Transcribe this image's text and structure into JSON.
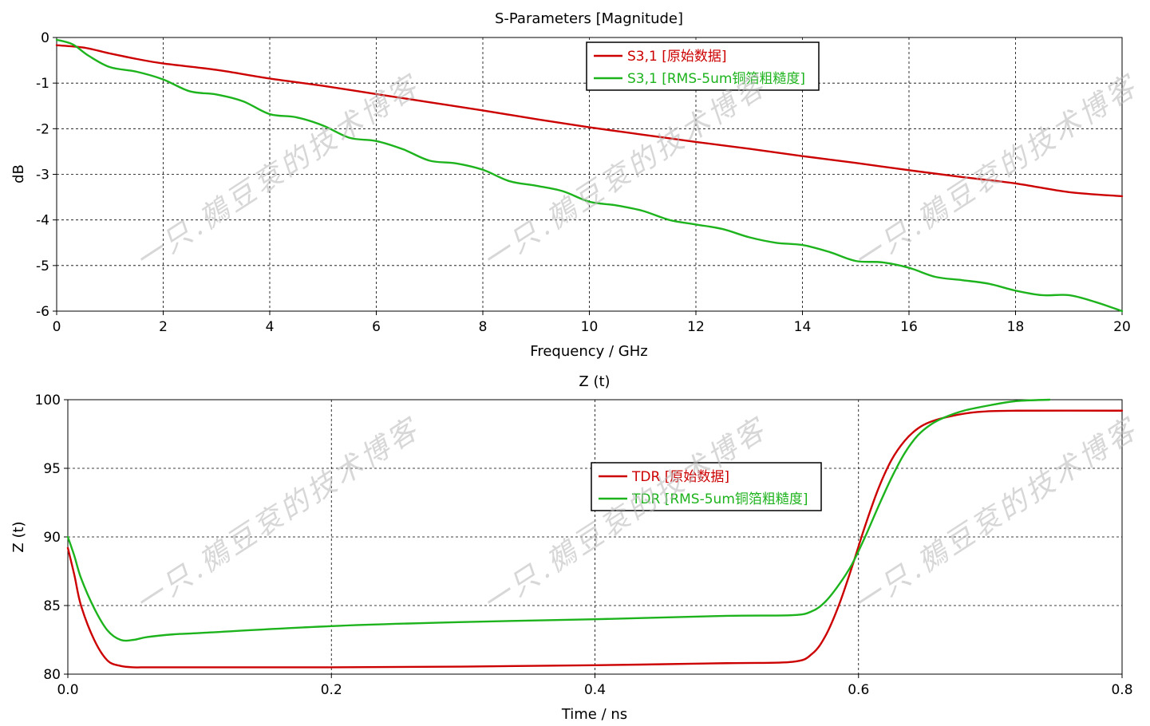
{
  "colors": {
    "red": "#cc0000",
    "green": "#1db31d",
    "axis": "#000000",
    "watermark": "#b8b8b8"
  },
  "watermark_text": "一只.鵺豆袞的技术博客",
  "chart_data": [
    {
      "type": "line",
      "title": "S-Parameters [Magnitude]",
      "xlabel": "Frequency / GHz",
      "ylabel": "dB",
      "xlim": [
        0,
        20
      ],
      "ylim": [
        -6,
        0
      ],
      "grid": true,
      "legend_position": "top-center",
      "x_ticks": [
        0,
        2,
        4,
        6,
        8,
        10,
        12,
        14,
        16,
        18,
        20
      ],
      "y_ticks": [
        0,
        -1,
        -2,
        -3,
        -4,
        -5,
        -6
      ],
      "series": [
        {
          "name": "S3,1 [原始数据]",
          "color": "#cc0000",
          "x": [
            0,
            0.5,
            1,
            1.5,
            2,
            3,
            4,
            5,
            6,
            7,
            8,
            9,
            10,
            11,
            12,
            13,
            14,
            15,
            16,
            17,
            18,
            19,
            20
          ],
          "y": [
            -0.17,
            -0.22,
            -0.35,
            -0.47,
            -0.57,
            -0.71,
            -0.9,
            -1.06,
            -1.24,
            -1.42,
            -1.6,
            -1.79,
            -1.97,
            -2.13,
            -2.29,
            -2.44,
            -2.6,
            -2.75,
            -2.91,
            -3.06,
            -3.2,
            -3.39,
            -3.48
          ]
        },
        {
          "name": "S3,1 [RMS-5um铜箔粗糙度]",
          "color": "#1db31d",
          "x": [
            0,
            0.3,
            0.6,
            1,
            1.5,
            2,
            2.5,
            3,
            3.5,
            4,
            4.5,
            5,
            5.5,
            6,
            6.5,
            7,
            7.5,
            8,
            8.5,
            9,
            9.5,
            10,
            10.5,
            11,
            11.5,
            12,
            12.5,
            13,
            13.5,
            14,
            14.5,
            15,
            15.5,
            16,
            16.5,
            17,
            17.5,
            18,
            18.5,
            19,
            19.5,
            20
          ],
          "y": [
            -0.05,
            -0.15,
            -0.4,
            -0.65,
            -0.75,
            -0.92,
            -1.18,
            -1.25,
            -1.4,
            -1.68,
            -1.75,
            -1.93,
            -2.2,
            -2.27,
            -2.45,
            -2.7,
            -2.76,
            -2.9,
            -3.15,
            -3.25,
            -3.37,
            -3.6,
            -3.68,
            -3.8,
            -4.0,
            -4.1,
            -4.2,
            -4.38,
            -4.5,
            -4.55,
            -4.7,
            -4.9,
            -4.93,
            -5.05,
            -5.25,
            -5.32,
            -5.4,
            -5.55,
            -5.65,
            -5.65,
            -5.8,
            -6.0
          ]
        }
      ]
    },
    {
      "type": "line",
      "title": "Z (t)",
      "xlabel": "Time / ns",
      "ylabel": "Z (t)",
      "xlim": [
        0,
        0.8
      ],
      "ylim": [
        80,
        100
      ],
      "grid": true,
      "legend_position": "center",
      "x_ticks": [
        0,
        0.2,
        0.4,
        0.6,
        0.8
      ],
      "y_ticks": [
        100,
        95,
        90,
        85,
        80
      ],
      "series": [
        {
          "name": "TDR [原始数据]",
          "color": "#cc0000",
          "x": [
            0,
            0.005,
            0.01,
            0.02,
            0.03,
            0.04,
            0.05,
            0.06,
            0.08,
            0.1,
            0.2,
            0.3,
            0.4,
            0.5,
            0.55,
            0.565,
            0.575,
            0.585,
            0.595,
            0.605,
            0.615,
            0.625,
            0.635,
            0.645,
            0.655,
            0.67,
            0.69,
            0.72,
            0.8
          ],
          "y": [
            89.2,
            87.2,
            85.0,
            82.5,
            81.0,
            80.6,
            80.5,
            80.5,
            80.5,
            80.5,
            80.5,
            80.55,
            80.65,
            80.8,
            80.9,
            81.5,
            82.8,
            85.0,
            87.8,
            90.8,
            93.5,
            95.6,
            97.0,
            97.9,
            98.4,
            98.8,
            99.1,
            99.2,
            99.2
          ]
        },
        {
          "name": "TDR [RMS-5um铜箔粗糙度]",
          "color": "#1db31d",
          "x": [
            0,
            0.005,
            0.01,
            0.02,
            0.03,
            0.04,
            0.05,
            0.06,
            0.08,
            0.1,
            0.2,
            0.3,
            0.4,
            0.5,
            0.55,
            0.565,
            0.575,
            0.585,
            0.595,
            0.605,
            0.615,
            0.625,
            0.635,
            0.645,
            0.655,
            0.665,
            0.68,
            0.7,
            0.72,
            0.745
          ],
          "y": [
            90.0,
            88.6,
            87.0,
            84.8,
            83.2,
            82.5,
            82.5,
            82.7,
            82.9,
            83.0,
            83.5,
            83.8,
            84.0,
            84.25,
            84.3,
            84.6,
            85.3,
            86.5,
            88.0,
            90.0,
            92.2,
            94.3,
            96.1,
            97.4,
            98.2,
            98.7,
            99.2,
            99.6,
            99.9,
            100.0
          ]
        }
      ]
    }
  ]
}
